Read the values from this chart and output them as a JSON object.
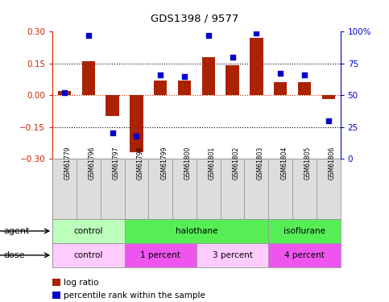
{
  "title": "GDS1398 / 9577",
  "samples": [
    "GSM61779",
    "GSM61796",
    "GSM61797",
    "GSM61798",
    "GSM61799",
    "GSM61800",
    "GSM61801",
    "GSM61802",
    "GSM61803",
    "GSM61804",
    "GSM61805",
    "GSM61806"
  ],
  "log_ratio": [
    0.02,
    0.16,
    -0.1,
    -0.27,
    0.07,
    0.07,
    0.18,
    0.14,
    0.27,
    0.06,
    0.06,
    -0.02
  ],
  "percentile_rank": [
    52,
    97,
    20,
    18,
    66,
    65,
    97,
    80,
    99,
    67,
    66,
    30
  ],
  "bar_color": "#aa2200",
  "dot_color": "#0000cc",
  "ylim_left": [
    -0.3,
    0.3
  ],
  "ylim_right": [
    0,
    100
  ],
  "yticks_left": [
    -0.3,
    -0.15,
    0,
    0.15,
    0.3
  ],
  "yticks_right": [
    0,
    25,
    50,
    75,
    100
  ],
  "hlines": [
    0.15,
    0,
    -0.15
  ],
  "agent_groups": [
    {
      "label": "control",
      "start": 0,
      "end": 3,
      "color": "#bbffbb"
    },
    {
      "label": "halothane",
      "start": 3,
      "end": 9,
      "color": "#55ee55"
    },
    {
      "label": "isoflurane",
      "start": 9,
      "end": 12,
      "color": "#55ee55"
    }
  ],
  "dose_groups": [
    {
      "label": "control",
      "start": 0,
      "end": 3,
      "color": "#ffccff"
    },
    {
      "label": "1 percent",
      "start": 3,
      "end": 6,
      "color": "#ee55ee"
    },
    {
      "label": "3 percent",
      "start": 6,
      "end": 9,
      "color": "#ffccff"
    },
    {
      "label": "4 percent",
      "start": 9,
      "end": 12,
      "color": "#ee55ee"
    }
  ],
  "legend_items": [
    {
      "label": "log ratio",
      "color": "#aa2200"
    },
    {
      "label": "percentile rank within the sample",
      "color": "#0000cc"
    }
  ],
  "left_axis_color": "#cc2200",
  "right_axis_color": "#0000cc",
  "bg_color": "#ffffff",
  "zero_line_color": "#cc2200",
  "agent_label": "agent",
  "dose_label": "dose",
  "sample_box_color": "#dddddd",
  "sample_box_edge": "#999999"
}
